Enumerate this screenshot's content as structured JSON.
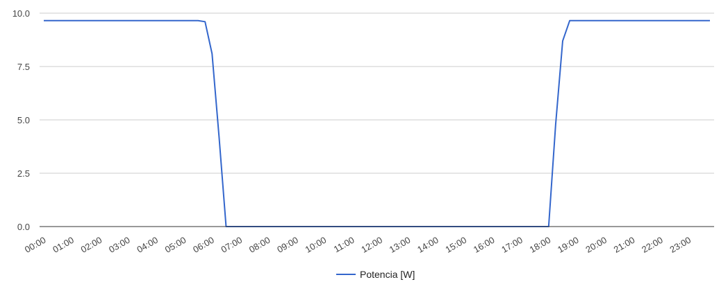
{
  "chart_data": {
    "type": "line",
    "x": [
      "00:00",
      "00:15",
      "00:30",
      "00:45",
      "01:00",
      "01:15",
      "01:30",
      "01:45",
      "02:00",
      "02:15",
      "02:30",
      "02:45",
      "03:00",
      "03:15",
      "03:30",
      "03:45",
      "04:00",
      "04:15",
      "04:30",
      "04:45",
      "05:00",
      "05:15",
      "05:30",
      "05:45",
      "06:00",
      "06:15",
      "06:30",
      "06:45",
      "07:00",
      "07:15",
      "07:30",
      "07:45",
      "08:00",
      "08:15",
      "08:30",
      "08:45",
      "09:00",
      "09:15",
      "09:30",
      "09:45",
      "10:00",
      "10:15",
      "10:30",
      "10:45",
      "11:00",
      "11:15",
      "11:30",
      "11:45",
      "12:00",
      "12:15",
      "12:30",
      "12:45",
      "13:00",
      "13:15",
      "13:30",
      "13:45",
      "14:00",
      "14:15",
      "14:30",
      "14:45",
      "15:00",
      "15:15",
      "15:30",
      "15:45",
      "16:00",
      "16:15",
      "16:30",
      "16:45",
      "17:00",
      "17:15",
      "17:30",
      "17:45",
      "18:00",
      "18:15",
      "18:30",
      "18:45",
      "19:00",
      "19:15",
      "19:30",
      "19:45",
      "20:00",
      "20:15",
      "20:30",
      "20:45",
      "21:00",
      "21:15",
      "21:30",
      "21:45",
      "22:00",
      "22:15",
      "22:30",
      "22:45",
      "23:00",
      "23:15",
      "23:30",
      "23:45"
    ],
    "series": [
      {
        "name": "Potencia [W]",
        "color": "#3366cc",
        "values": [
          9.65,
          9.65,
          9.65,
          9.65,
          9.65,
          9.65,
          9.65,
          9.65,
          9.65,
          9.65,
          9.65,
          9.65,
          9.65,
          9.65,
          9.65,
          9.65,
          9.65,
          9.65,
          9.65,
          9.65,
          9.65,
          9.65,
          9.65,
          9.6,
          8.1,
          4.2,
          0,
          0,
          0,
          0,
          0,
          0,
          0,
          0,
          0,
          0,
          0,
          0,
          0,
          0,
          0,
          0,
          0,
          0,
          0,
          0,
          0,
          0,
          0,
          0,
          0,
          0,
          0,
          0,
          0,
          0,
          0,
          0,
          0,
          0,
          0,
          0,
          0,
          0,
          0,
          0,
          0,
          0,
          0,
          0,
          0,
          0,
          0,
          4.8,
          8.7,
          9.65,
          9.65,
          9.65,
          9.65,
          9.65,
          9.65,
          9.65,
          9.65,
          9.65,
          9.65,
          9.65,
          9.65,
          9.65,
          9.65,
          9.65,
          9.65,
          9.65,
          9.65,
          9.65,
          9.65,
          9.65
        ]
      }
    ],
    "xticks": [
      "00:00",
      "01:00",
      "02:00",
      "03:00",
      "04:00",
      "05:00",
      "06:00",
      "07:00",
      "08:00",
      "09:00",
      "10:00",
      "11:00",
      "12:00",
      "13:00",
      "14:00",
      "15:00",
      "16:00",
      "17:00",
      "18:00",
      "19:00",
      "20:00",
      "21:00",
      "22:00",
      "23:00"
    ],
    "yticks": [
      "0.0",
      "2.5",
      "5.0",
      "7.5",
      "10.0"
    ],
    "ylim": [
      0,
      10
    ],
    "title": "",
    "xlabel": "",
    "ylabel": "",
    "grid": true,
    "legend_position": "bottom"
  }
}
